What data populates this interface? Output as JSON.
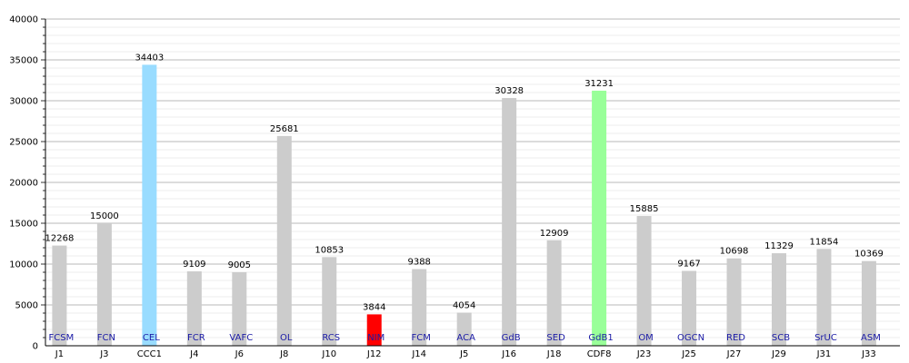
{
  "chart_data": {
    "type": "bar",
    "title": "",
    "xlabel": "",
    "ylabel": "",
    "ylim": [
      0,
      40000
    ],
    "yticks": [
      0,
      5000,
      10000,
      15000,
      20000,
      25000,
      30000,
      35000,
      40000
    ],
    "grid": true,
    "legend": "none",
    "categories": [
      "J1",
      "J3",
      "CCC1",
      "J4",
      "J6",
      "J8",
      "J10",
      "J12",
      "J14",
      "J5",
      "J16",
      "J18",
      "CDF8",
      "J23",
      "J25",
      "J27",
      "J29",
      "J31",
      "J33"
    ],
    "values": [
      12268,
      15000,
      34403,
      9109,
      9005,
      25681,
      10853,
      3844,
      9388,
      4054,
      30328,
      12909,
      31231,
      15885,
      9167,
      10698,
      11329,
      11854,
      10369
    ],
    "abbreviations": [
      "FCSM",
      "FCN",
      "CEL",
      "FCR",
      "VAFC",
      "OL",
      "RCS",
      "NIM",
      "FCM",
      "ACA",
      "GdB",
      "SED",
      "GdB1",
      "OM",
      "OGCN",
      "RED",
      "SCB",
      "SrUC",
      "ASM"
    ],
    "bar_colors": [
      "#cccccc",
      "#cccccc",
      "#99dcff",
      "#cccccc",
      "#cccccc",
      "#cccccc",
      "#cccccc",
      "#ff0000",
      "#cccccc",
      "#cccccc",
      "#cccccc",
      "#cccccc",
      "#99ff99",
      "#cccccc",
      "#cccccc",
      "#cccccc",
      "#cccccc",
      "#cccccc",
      "#cccccc"
    ],
    "colors": {
      "axis": "#000000",
      "grid": "#d9d9d9",
      "abbr_text": "#1a1aa6"
    }
  }
}
